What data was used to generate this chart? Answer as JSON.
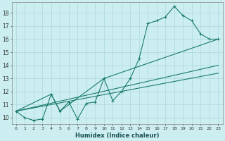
{
  "xlabel": "Humidex (Indice chaleur)",
  "bg_color": "#cceef0",
  "grid_color": "#aad8dc",
  "line_color": "#1a7a6e",
  "xlim": [
    -0.5,
    23.5
  ],
  "ylim": [
    9.5,
    18.8
  ],
  "xticks": [
    0,
    1,
    2,
    3,
    4,
    5,
    6,
    7,
    8,
    9,
    10,
    11,
    12,
    13,
    14,
    15,
    16,
    17,
    18,
    19,
    20,
    21,
    22,
    23
  ],
  "yticks": [
    10,
    11,
    12,
    13,
    14,
    15,
    16,
    17,
    18
  ],
  "series1_x": [
    0,
    1,
    2,
    3,
    4,
    5,
    6,
    7,
    8,
    9,
    10,
    11,
    12,
    13,
    14,
    15,
    16,
    17,
    18,
    19,
    20,
    21,
    22,
    23
  ],
  "series1_y": [
    10.5,
    10.0,
    9.8,
    9.9,
    11.8,
    10.5,
    11.2,
    9.9,
    11.1,
    11.2,
    13.0,
    11.3,
    12.0,
    13.0,
    14.5,
    17.2,
    17.4,
    17.7,
    18.5,
    17.8,
    17.4,
    16.4,
    16.0,
    16.0
  ],
  "series2_x": [
    0,
    23
  ],
  "series2_y": [
    10.5,
    14.0
  ],
  "series3_x": [
    0,
    4,
    5,
    10,
    23
  ],
  "series3_y": [
    10.5,
    11.8,
    10.5,
    13.0,
    16.0
  ],
  "series4_x": [
    0,
    23
  ],
  "series4_y": [
    10.5,
    13.4
  ]
}
